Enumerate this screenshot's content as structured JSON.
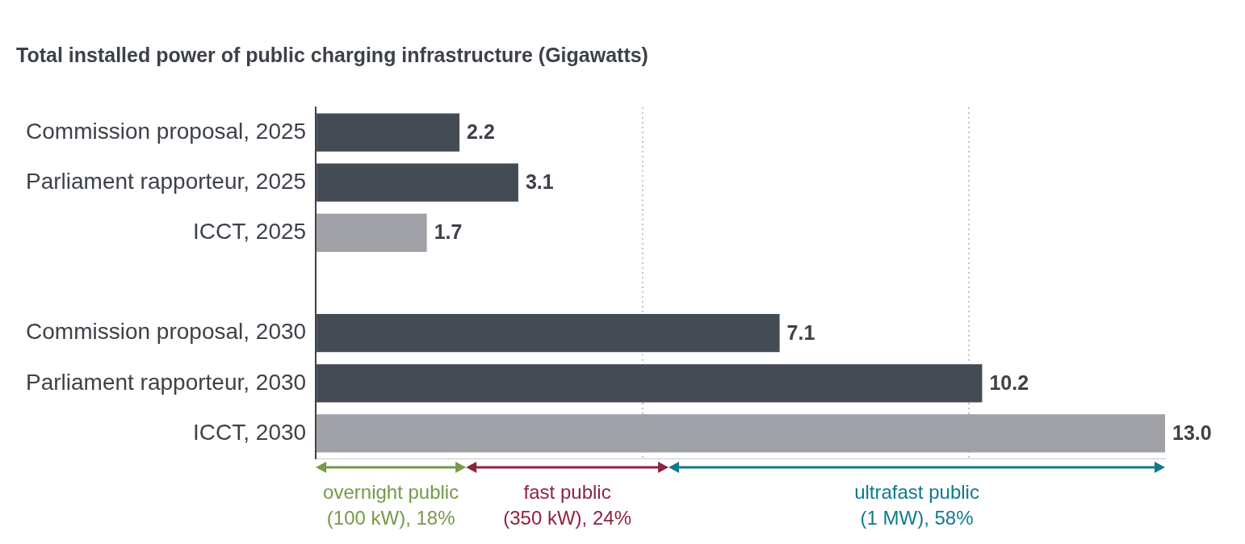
{
  "chart_data": {
    "type": "bar",
    "orientation": "horizontal",
    "title": "Total installed power of public charging infrastructure (Gigawatts)",
    "categories": [
      "Commission proposal, 2025",
      "Parliament rapporteur, 2025",
      "ICCT, 2025",
      null,
      "Commission proposal, 2030",
      "Parliament rapporteur, 2030",
      "ICCT, 2030"
    ],
    "values": [
      2.2,
      3.1,
      1.7,
      null,
      7.1,
      10.2,
      13.0
    ],
    "value_labels": [
      "2.2",
      "3.1",
      "1.7",
      null,
      "7.1",
      "10.2",
      "13.0"
    ],
    "colors": [
      "#444b55",
      "#444b55",
      "#a0a1a6",
      null,
      "#444b55",
      "#444b55",
      "#a0a1a6"
    ],
    "xlim": [
      0,
      13
    ],
    "xticks": [
      0,
      5,
      10
    ],
    "grid": true,
    "data_labels": true,
    "tick_labels": "y",
    "annotations": [
      {
        "text": [
          "overnight public",
          "(100 kW), 18%"
        ],
        "color": "#76994a",
        "x_range": [
          0,
          2.3
        ]
      },
      {
        "text": [
          "fast public",
          "(350 kW), 24%"
        ],
        "color": "#8e2340",
        "x_range": [
          2.3,
          5.4
        ]
      },
      {
        "text": [
          "ultrafast public",
          "(1 MW), 58%"
        ],
        "color": "#0e7a8c",
        "x_range": [
          5.4,
          13.0
        ]
      }
    ]
  }
}
